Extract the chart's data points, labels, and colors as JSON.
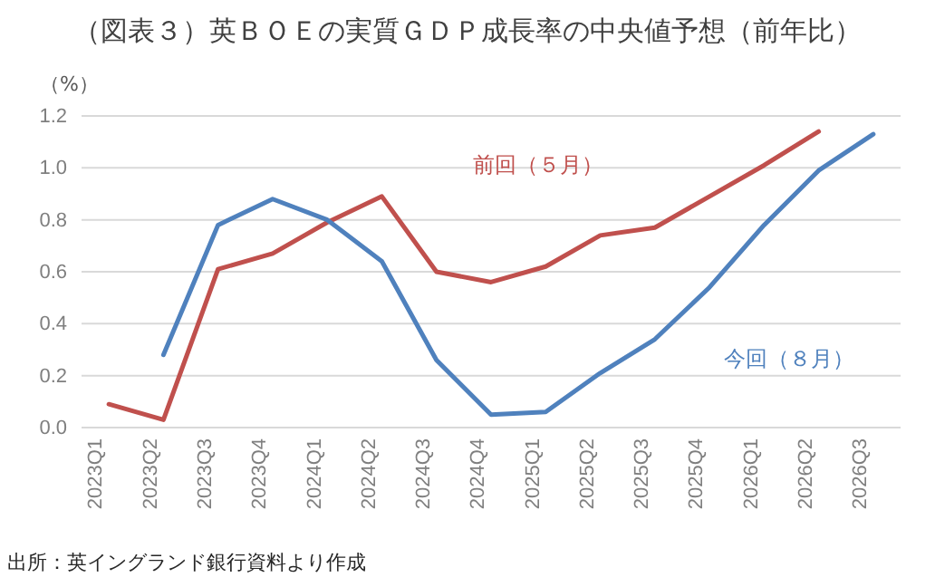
{
  "chart_data": {
    "type": "line",
    "title": "（図表３）英ＢＯＥの実質ＧＤＰ成長率の中央値予想（前年比）",
    "ylabel": "（%）",
    "categories": [
      "2023Q1",
      "2023Q2",
      "2023Q3",
      "2023Q4",
      "2024Q1",
      "2024Q2",
      "2024Q3",
      "2024Q4",
      "2025Q1",
      "2025Q2",
      "2025Q3",
      "2025Q4",
      "2026Q1",
      "2026Q2",
      "2026Q3"
    ],
    "series": [
      {
        "name": "前回（５月）",
        "color": "#c0504d",
        "values": [
          0.09,
          0.03,
          0.61,
          0.67,
          0.79,
          0.89,
          0.6,
          0.56,
          0.62,
          0.74,
          0.77,
          0.89,
          1.01,
          1.14,
          null
        ]
      },
      {
        "name": "今回（８月）",
        "color": "#4f81bd",
        "values": [
          null,
          0.28,
          0.78,
          0.88,
          0.8,
          0.64,
          0.26,
          0.05,
          0.06,
          0.21,
          0.34,
          0.54,
          0.78,
          0.99,
          1.13
        ]
      }
    ],
    "ylim": [
      0,
      1.2
    ],
    "yticks": [
      {
        "value": 0,
        "label": "0.0"
      },
      {
        "value": 0.2,
        "label": "0.2"
      },
      {
        "value": 0.4,
        "label": "0.4"
      },
      {
        "value": 0.6,
        "label": "0.6"
      },
      {
        "value": 0.8,
        "label": "0.8"
      },
      {
        "value": 1,
        "label": "1.0"
      },
      {
        "value": 1.2,
        "label": "1.2"
      }
    ],
    "grid": "y",
    "legend": false,
    "marker": "none",
    "line_style": "solid",
    "annotations": [
      "出所：英イングランド銀行資料より作成"
    ]
  }
}
